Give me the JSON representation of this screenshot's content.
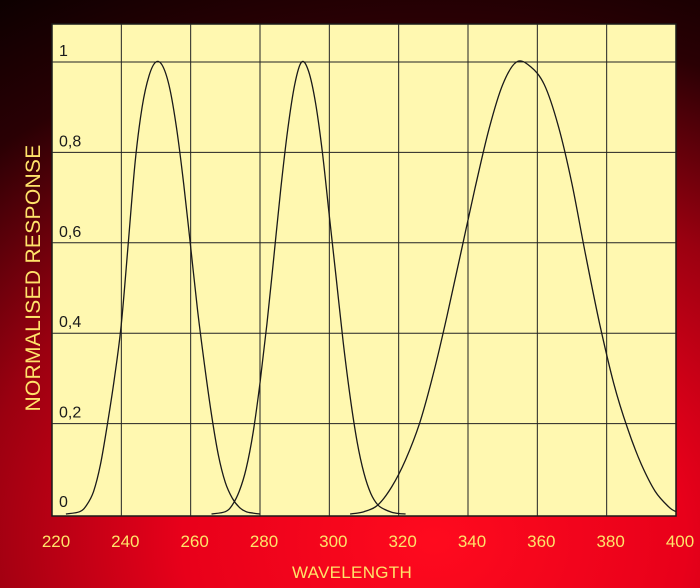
{
  "chart_data": {
    "type": "line",
    "title": "",
    "xlabel": "WAVELENGTH",
    "ylabel": "NORMALISED RESPONSE",
    "xlim": [
      220,
      400
    ],
    "ylim": [
      0,
      1
    ],
    "grid": true,
    "x_ticks": [
      "220",
      "240",
      "260",
      "280",
      "300",
      "320",
      "340",
      "360",
      "380",
      "400"
    ],
    "y_ticks": [
      "0",
      "0,2",
      "0,4",
      "0,6",
      "0,8",
      "1"
    ],
    "series": [
      {
        "x": [
          224,
          228,
          230,
          232,
          234,
          236,
          238,
          240,
          242,
          244,
          246,
          248,
          250,
          252,
          254,
          256,
          258,
          260,
          262,
          264,
          266,
          268,
          270,
          272,
          274,
          276,
          278,
          280
        ],
        "y": [
          0,
          0.005,
          0.02,
          0.05,
          0.11,
          0.2,
          0.3,
          0.42,
          0.6,
          0.78,
          0.9,
          0.97,
          1.0,
          0.99,
          0.94,
          0.85,
          0.73,
          0.59,
          0.45,
          0.33,
          0.22,
          0.13,
          0.07,
          0.035,
          0.015,
          0.005,
          0.002,
          0
        ]
      },
      {
        "x": [
          266,
          270,
          272,
          274,
          276,
          278,
          280,
          282,
          284,
          286,
          288,
          290,
          292,
          294,
          296,
          298,
          300,
          302,
          304,
          306,
          308,
          310,
          312,
          314,
          316,
          318,
          320,
          322
        ],
        "y": [
          0,
          0.005,
          0.02,
          0.05,
          0.1,
          0.18,
          0.29,
          0.42,
          0.57,
          0.72,
          0.85,
          0.95,
          1.0,
          0.98,
          0.91,
          0.8,
          0.66,
          0.52,
          0.38,
          0.26,
          0.16,
          0.09,
          0.045,
          0.02,
          0.01,
          0.004,
          0.001,
          0
        ]
      },
      {
        "x": [
          306,
          310,
          314,
          318,
          322,
          326,
          330,
          334,
          338,
          342,
          346,
          350,
          354,
          358,
          362,
          366,
          370,
          374,
          378,
          382,
          386,
          390,
          394,
          398,
          400
        ],
        "y": [
          0,
          0.005,
          0.02,
          0.06,
          0.12,
          0.2,
          0.31,
          0.44,
          0.58,
          0.72,
          0.85,
          0.95,
          1.0,
          0.99,
          0.95,
          0.86,
          0.73,
          0.57,
          0.42,
          0.29,
          0.19,
          0.11,
          0.05,
          0.015,
          0.005
        ]
      }
    ]
  }
}
